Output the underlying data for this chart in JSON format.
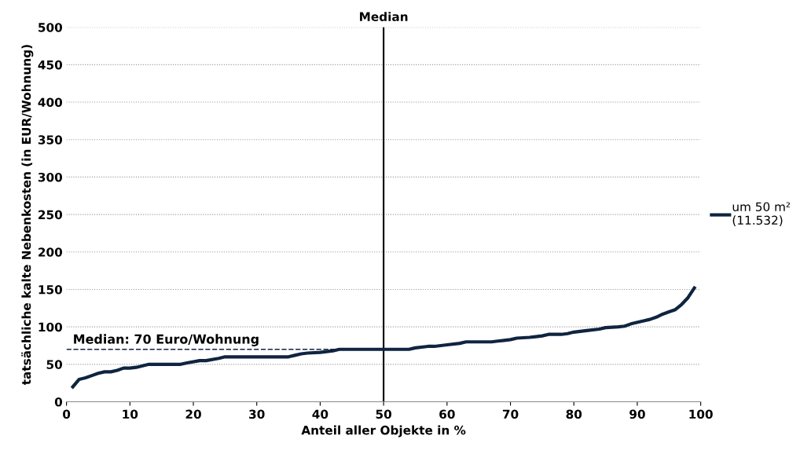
{
  "chart_data": {
    "type": "line",
    "xlabel": "Anteil aller Objekte in %",
    "ylabel": "tatsächliche kalte Nebenkosten (in EUR/Wohnung)",
    "series": [
      {
        "name": "um 50 m²\n(11.532)",
        "color": "#0f2440",
        "x": [
          1,
          2,
          3,
          4,
          5,
          6,
          7,
          8,
          9,
          10,
          11,
          12,
          13,
          15,
          18,
          19,
          21,
          22,
          24,
          25,
          35,
          36,
          37,
          38,
          40,
          41,
          42,
          43,
          50,
          54,
          55,
          57,
          58,
          59,
          60,
          62,
          63,
          67,
          68,
          69,
          70,
          71,
          73,
          74,
          75,
          76,
          78,
          79,
          80,
          82,
          84,
          85,
          87,
          88,
          89,
          91,
          92,
          93,
          94,
          95,
          96,
          97,
          98,
          99
        ],
        "values": [
          20,
          30,
          32,
          35,
          38,
          40,
          40,
          42,
          45,
          45,
          46,
          48,
          50,
          50,
          50,
          52,
          55,
          55,
          58,
          60,
          60,
          62,
          64,
          65,
          66,
          67,
          68,
          70,
          70,
          70,
          72,
          74,
          74,
          75,
          76,
          78,
          80,
          80,
          81,
          82,
          83,
          85,
          86,
          87,
          88,
          90,
          90,
          91,
          93,
          95,
          97,
          99,
          100,
          101,
          104,
          108,
          110,
          113,
          117,
          120,
          123,
          130,
          139,
          152
        ]
      }
    ],
    "xlim": [
      0,
      100
    ],
    "xticks": [
      0,
      10,
      20,
      30,
      40,
      50,
      60,
      70,
      80,
      90,
      100
    ],
    "ylim": [
      0,
      500
    ],
    "yticks": [
      0,
      50,
      100,
      150,
      200,
      250,
      300,
      350,
      400,
      450,
      500
    ],
    "grid": "y",
    "legend": "right",
    "line_style": "solid",
    "marker": "none",
    "ref_lines": [
      {
        "axis": "x",
        "value": 50,
        "label": "Median",
        "color": "#000000",
        "line_style": "solid"
      },
      {
        "axis": "y",
        "value": 70,
        "label": "Median: 70 Euro/Wohnung",
        "color": "#0f2440",
        "line_style": "dashed"
      }
    ]
  }
}
